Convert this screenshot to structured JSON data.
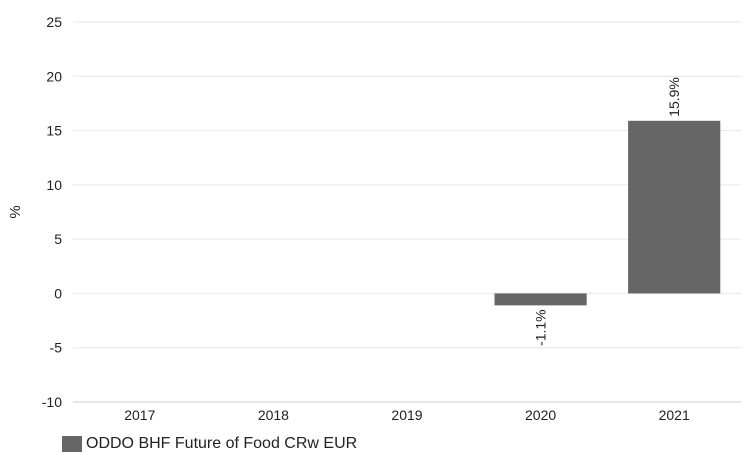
{
  "chart_data": {
    "type": "bar",
    "categories": [
      "2017",
      "2018",
      "2019",
      "2020",
      "2021"
    ],
    "series": [
      {
        "name": "ODDO BHF Future of Food CRw EUR",
        "values": [
          null,
          null,
          null,
          -1.1,
          15.9
        ],
        "color": "#666666"
      }
    ],
    "data_labels": [
      "",
      "",
      "",
      "-1.1%",
      "15.9%"
    ],
    "ylabel": "%",
    "ylim": [
      -10,
      25
    ],
    "yticks": [
      -10,
      -5,
      0,
      5,
      10,
      15,
      20,
      25
    ],
    "grid": true,
    "legend_position": "bottom-left"
  }
}
